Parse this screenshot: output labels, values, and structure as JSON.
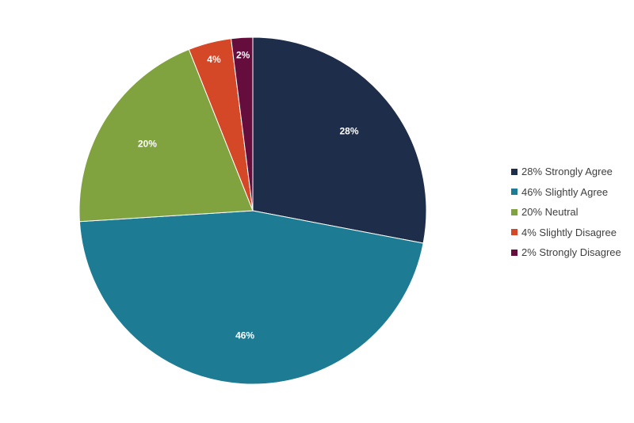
{
  "chart_data": {
    "type": "pie",
    "start_angle_deg": 0,
    "direction": "clockwise",
    "legend_position": "right",
    "slices": [
      {
        "label": "28%",
        "legend": "28% Strongly Agree",
        "value": 28,
        "color": "#1e2e4a"
      },
      {
        "label": "46%",
        "legend": "46% Slightly Agree",
        "value": 46,
        "color": "#1d7b93"
      },
      {
        "label": "20%",
        "legend": "20% Neutral",
        "value": 20,
        "color": "#80a23f"
      },
      {
        "label": "4%",
        "legend": "4% Slightly Disagree",
        "value": 4,
        "color": "#d44727"
      },
      {
        "label": "2%",
        "legend": "2% Strongly Disagree",
        "value": 2,
        "color": "#650d3c"
      }
    ]
  }
}
